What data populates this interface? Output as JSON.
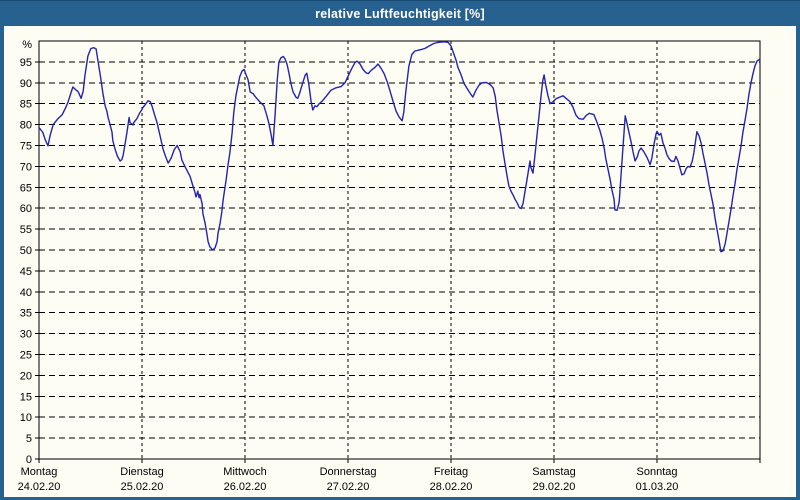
{
  "window": {
    "title": "relative Luftfeuchtigkeit [%]"
  },
  "colors": {
    "titlebar_bg": "#26618f",
    "title_text": "#ffffff",
    "content_bg": "#fdfdf4",
    "grid": "#000000",
    "series_line": "#2323b4"
  },
  "chart_data": {
    "type": "line",
    "title": "relative Luftfeuchtigkeit [%]",
    "xlabel": "",
    "ylabel": "%",
    "ylim": [
      0,
      100
    ],
    "ytick_step": 5,
    "yticks": [
      0,
      5,
      10,
      15,
      20,
      25,
      30,
      35,
      40,
      45,
      50,
      55,
      60,
      65,
      70,
      75,
      80,
      85,
      90,
      95
    ],
    "x_range_hours": 168,
    "grid": "dashed",
    "legend": "none",
    "days": [
      {
        "name": "Montag",
        "date": "24.02.20"
      },
      {
        "name": "Dienstag",
        "date": "25.02.20"
      },
      {
        "name": "Mittwoch",
        "date": "26.02.20"
      },
      {
        "name": "Donnerstag",
        "date": "27.02.20"
      },
      {
        "name": "Freitag",
        "date": "28.02.20"
      },
      {
        "name": "Samstag",
        "date": "29.02.20"
      },
      {
        "name": "Sonntag",
        "date": "01.03.20"
      }
    ],
    "series": [
      {
        "name": "relative-luftfeuchtigkeit",
        "color": "#2323b4",
        "points": [
          [
            0,
            79.3
          ],
          [
            0.9,
            78.1
          ],
          [
            1.4,
            76.5
          ],
          [
            2.1,
            74.9
          ],
          [
            2.6,
            77.5
          ],
          [
            3.3,
            80
          ],
          [
            4.4,
            81.4
          ],
          [
            5.4,
            82.4
          ],
          [
            6.1,
            83.8
          ],
          [
            6.8,
            85.5
          ],
          [
            7.5,
            87.8
          ],
          [
            7.9,
            89
          ],
          [
            8.6,
            88.3
          ],
          [
            9.1,
            87.9
          ],
          [
            9.8,
            86.3
          ],
          [
            10.3,
            88
          ],
          [
            10.7,
            91.7
          ],
          [
            11.4,
            96.4
          ],
          [
            12.1,
            98.2
          ],
          [
            12.8,
            98.4
          ],
          [
            13.3,
            98.1
          ],
          [
            13.7,
            95.5
          ],
          [
            14.4,
            91
          ],
          [
            14.9,
            87.5
          ],
          [
            15.4,
            84.5
          ],
          [
            15.8,
            83.3
          ],
          [
            16.1,
            81.7
          ],
          [
            16.5,
            80.2
          ],
          [
            17,
            78.2
          ],
          [
            17.2,
            76.2
          ],
          [
            17.7,
            74.2
          ],
          [
            18.2,
            72.6
          ],
          [
            18.9,
            71.3
          ],
          [
            19.3,
            71.6
          ],
          [
            19.6,
            72.6
          ],
          [
            20,
            75
          ],
          [
            20.5,
            78.2
          ],
          [
            21,
            81.7
          ],
          [
            21.2,
            80.5
          ],
          [
            21.9,
            79.9
          ],
          [
            22.1,
            80.5
          ],
          [
            22.8,
            81.4
          ],
          [
            23.5,
            82.9
          ],
          [
            24,
            83.6
          ],
          [
            24.2,
            84.1
          ],
          [
            24.7,
            84.7
          ],
          [
            25.4,
            85.7
          ],
          [
            25.9,
            85.5
          ],
          [
            26.3,
            84.5
          ],
          [
            27,
            82.1
          ],
          [
            27.5,
            80.5
          ],
          [
            28.2,
            77.4
          ],
          [
            28.9,
            74.2
          ],
          [
            29.4,
            72.6
          ],
          [
            30.1,
            70.8
          ],
          [
            30.8,
            72
          ],
          [
            31.5,
            74
          ],
          [
            32.2,
            75
          ],
          [
            32.9,
            73.5
          ],
          [
            33.3,
            71.5
          ],
          [
            34,
            70
          ],
          [
            35.2,
            67.6
          ],
          [
            35.9,
            65.2
          ],
          [
            36.3,
            63.9
          ],
          [
            36.6,
            62.7
          ],
          [
            37,
            64.1
          ],
          [
            37.3,
            62.5
          ],
          [
            37.5,
            63.3
          ],
          [
            38,
            61.1
          ],
          [
            38.2,
            58.7
          ],
          [
            38.7,
            56.4
          ],
          [
            39.1,
            54
          ],
          [
            39.4,
            52
          ],
          [
            39.8,
            50.8
          ],
          [
            40.3,
            50.2
          ],
          [
            40.5,
            50
          ],
          [
            41,
            50.5
          ],
          [
            41.5,
            52
          ],
          [
            41.7,
            54
          ],
          [
            42.2,
            56.4
          ],
          [
            42.6,
            59.1
          ],
          [
            42.9,
            61.9
          ],
          [
            43.3,
            64.7
          ],
          [
            43.6,
            66.7
          ],
          [
            44,
            70
          ],
          [
            44.5,
            73.5
          ],
          [
            45,
            78
          ],
          [
            45.4,
            83
          ],
          [
            45.9,
            87
          ],
          [
            46.4,
            89.5
          ],
          [
            46.8,
            91.5
          ],
          [
            47.3,
            92.8
          ],
          [
            47.8,
            93.2
          ],
          [
            48.2,
            92
          ],
          [
            48.7,
            90.8
          ],
          [
            49.2,
            87.8
          ],
          [
            49.9,
            87.4
          ],
          [
            50.3,
            86.8
          ],
          [
            50.8,
            86.2
          ],
          [
            51.5,
            85.4
          ],
          [
            52.4,
            84.5
          ],
          [
            53.1,
            82.1
          ],
          [
            53.6,
            80.2
          ],
          [
            54.1,
            77.5
          ],
          [
            54.5,
            75
          ],
          [
            55,
            82
          ],
          [
            55.5,
            90.5
          ],
          [
            55.9,
            95
          ],
          [
            56.4,
            96
          ],
          [
            56.9,
            96.3
          ],
          [
            57.3,
            95.8
          ],
          [
            57.8,
            94.4
          ],
          [
            58.3,
            92
          ],
          [
            58.7,
            89.8
          ],
          [
            59.2,
            87.8
          ],
          [
            59.9,
            86.5
          ],
          [
            60.3,
            86.3
          ],
          [
            60.8,
            87.7
          ],
          [
            61.3,
            89.5
          ],
          [
            62,
            91.8
          ],
          [
            62.4,
            92.3
          ],
          [
            62.9,
            89.5
          ],
          [
            63.4,
            85.5
          ],
          [
            63.8,
            83.5
          ],
          [
            64.3,
            84.5
          ],
          [
            64.8,
            84.3
          ],
          [
            65.2,
            84.9
          ],
          [
            65.9,
            85.5
          ],
          [
            67.1,
            87
          ],
          [
            68,
            88.2
          ],
          [
            69.2,
            88.8
          ],
          [
            70.4,
            89.1
          ],
          [
            71.3,
            90
          ],
          [
            72.2,
            92
          ],
          [
            72.9,
            93.5
          ],
          [
            73.6,
            94.8
          ],
          [
            74.1,
            95.2
          ],
          [
            74.8,
            94.5
          ],
          [
            75.5,
            93.2
          ],
          [
            76.2,
            92.4
          ],
          [
            76.7,
            92.2
          ],
          [
            77.4,
            93
          ],
          [
            78.3,
            93.7
          ],
          [
            79,
            94.5
          ],
          [
            79.7,
            93.5
          ],
          [
            80.4,
            92.2
          ],
          [
            81.1,
            90.3
          ],
          [
            81.8,
            88
          ],
          [
            82.5,
            85.5
          ],
          [
            83.2,
            83.2
          ],
          [
            83.9,
            81.8
          ],
          [
            84.6,
            80.9
          ],
          [
            85,
            83
          ],
          [
            85.5,
            88.1
          ],
          [
            86.2,
            94
          ],
          [
            86.9,
            96.8
          ],
          [
            87.6,
            97.6
          ],
          [
            88.8,
            97.9
          ],
          [
            89.9,
            98.2
          ],
          [
            90.9,
            98.8
          ],
          [
            92,
            99.4
          ],
          [
            93,
            99.7
          ],
          [
            94.4,
            99.8
          ],
          [
            95.3,
            99.7
          ],
          [
            96,
            98.8
          ],
          [
            96.5,
            97.4
          ],
          [
            97.2,
            95.3
          ],
          [
            97.6,
            93.7
          ],
          [
            98.3,
            92
          ],
          [
            99,
            89.9
          ],
          [
            100,
            88.2
          ],
          [
            100.7,
            87.1
          ],
          [
            101.1,
            86.6
          ],
          [
            101.8,
            88.2
          ],
          [
            102.5,
            89.4
          ],
          [
            103.2,
            90
          ],
          [
            104.2,
            90.1
          ],
          [
            105.1,
            89.6
          ],
          [
            105.8,
            88.8
          ],
          [
            106.3,
            86.8
          ],
          [
            106.7,
            83.5
          ],
          [
            107.2,
            80.3
          ],
          [
            107.7,
            77.2
          ],
          [
            108.1,
            73.8
          ],
          [
            108.6,
            70.5
          ],
          [
            109.1,
            67.5
          ],
          [
            109.5,
            65.3
          ],
          [
            110,
            64
          ],
          [
            110.5,
            63.1
          ],
          [
            110.9,
            62.2
          ],
          [
            111.4,
            61.3
          ],
          [
            111.9,
            60.2
          ],
          [
            112.3,
            59.9
          ],
          [
            112.8,
            61.2
          ],
          [
            113.2,
            63.7
          ],
          [
            113.7,
            66.8
          ],
          [
            114.2,
            70
          ],
          [
            114.4,
            71.3
          ],
          [
            114.6,
            69.8
          ],
          [
            115.1,
            68.4
          ],
          [
            115.6,
            73
          ],
          [
            116,
            77
          ],
          [
            116.5,
            82
          ],
          [
            117,
            87
          ],
          [
            117.4,
            90.5
          ],
          [
            117.7,
            91.9
          ],
          [
            118.1,
            89.4
          ],
          [
            118.6,
            86.9
          ],
          [
            119.1,
            85
          ],
          [
            119.8,
            85.5
          ],
          [
            120.5,
            86.2
          ],
          [
            121.4,
            86.6
          ],
          [
            122.1,
            86.9
          ],
          [
            122.8,
            86.3
          ],
          [
            123.7,
            85.5
          ],
          [
            124.4,
            84.2
          ],
          [
            125.1,
            82.3
          ],
          [
            125.8,
            81.4
          ],
          [
            126.8,
            81.3
          ],
          [
            127.5,
            82.2
          ],
          [
            128.2,
            82.7
          ],
          [
            129.3,
            82.4
          ],
          [
            130,
            80.6
          ],
          [
            130.7,
            78.6
          ],
          [
            131.2,
            76.7
          ],
          [
            131.7,
            74.3
          ],
          [
            132.1,
            71.7
          ],
          [
            132.6,
            69.2
          ],
          [
            133.1,
            66.8
          ],
          [
            133.5,
            64.4
          ],
          [
            134,
            62.1
          ],
          [
            134.2,
            59.6
          ],
          [
            134.7,
            59.5
          ],
          [
            135.2,
            61.5
          ],
          [
            135.6,
            67.8
          ],
          [
            136.1,
            75
          ],
          [
            136.6,
            82.1
          ],
          [
            137,
            80.3
          ],
          [
            137.5,
            78
          ],
          [
            138,
            75.6
          ],
          [
            138.4,
            73.5
          ],
          [
            138.9,
            71.3
          ],
          [
            139.4,
            72.3
          ],
          [
            139.8,
            73.7
          ],
          [
            140.3,
            74.4
          ],
          [
            141,
            73.4
          ],
          [
            141.7,
            72.1
          ],
          [
            142.4,
            70.4
          ],
          [
            142.8,
            72
          ],
          [
            143.3,
            75.3
          ],
          [
            143.8,
            77.8
          ],
          [
            144,
            78.4
          ],
          [
            144.5,
            77.5
          ],
          [
            144.9,
            77.9
          ],
          [
            145.4,
            75.6
          ],
          [
            145.9,
            74.2
          ],
          [
            146.3,
            72.8
          ],
          [
            146.8,
            71.9
          ],
          [
            147.3,
            71.3
          ],
          [
            148,
            71.2
          ],
          [
            148.4,
            72.4
          ],
          [
            148.9,
            71.3
          ],
          [
            149.4,
            69.4
          ],
          [
            149.8,
            68
          ],
          [
            150.3,
            68.2
          ],
          [
            150.8,
            69.5
          ],
          [
            151.2,
            70
          ],
          [
            151.7,
            69.8
          ],
          [
            152.2,
            71.2
          ],
          [
            152.6,
            73.3
          ],
          [
            153.1,
            77
          ],
          [
            153.3,
            78.3
          ],
          [
            153.8,
            77.3
          ],
          [
            154.3,
            75.5
          ],
          [
            154.7,
            73.2
          ],
          [
            155.2,
            70.7
          ],
          [
            155.7,
            68.2
          ],
          [
            156.1,
            65.7
          ],
          [
            156.6,
            63.2
          ],
          [
            157.1,
            60.7
          ],
          [
            157.5,
            57.8
          ],
          [
            158,
            54.8
          ],
          [
            158.5,
            52
          ],
          [
            158.9,
            49.6
          ],
          [
            159.4,
            49.8
          ],
          [
            159.9,
            51.5
          ],
          [
            160.3,
            54
          ],
          [
            160.8,
            57
          ],
          [
            161.3,
            60
          ],
          [
            161.7,
            63
          ],
          [
            162.2,
            66
          ],
          [
            162.6,
            69
          ],
          [
            163.1,
            72
          ],
          [
            163.6,
            75
          ],
          [
            164,
            78
          ],
          [
            164.5,
            81
          ],
          [
            165,
            84
          ],
          [
            165.4,
            87
          ],
          [
            165.9,
            90
          ],
          [
            166.4,
            92.3
          ],
          [
            166.8,
            94
          ],
          [
            167.3,
            95.2
          ],
          [
            168,
            95.7
          ]
        ]
      }
    ]
  }
}
